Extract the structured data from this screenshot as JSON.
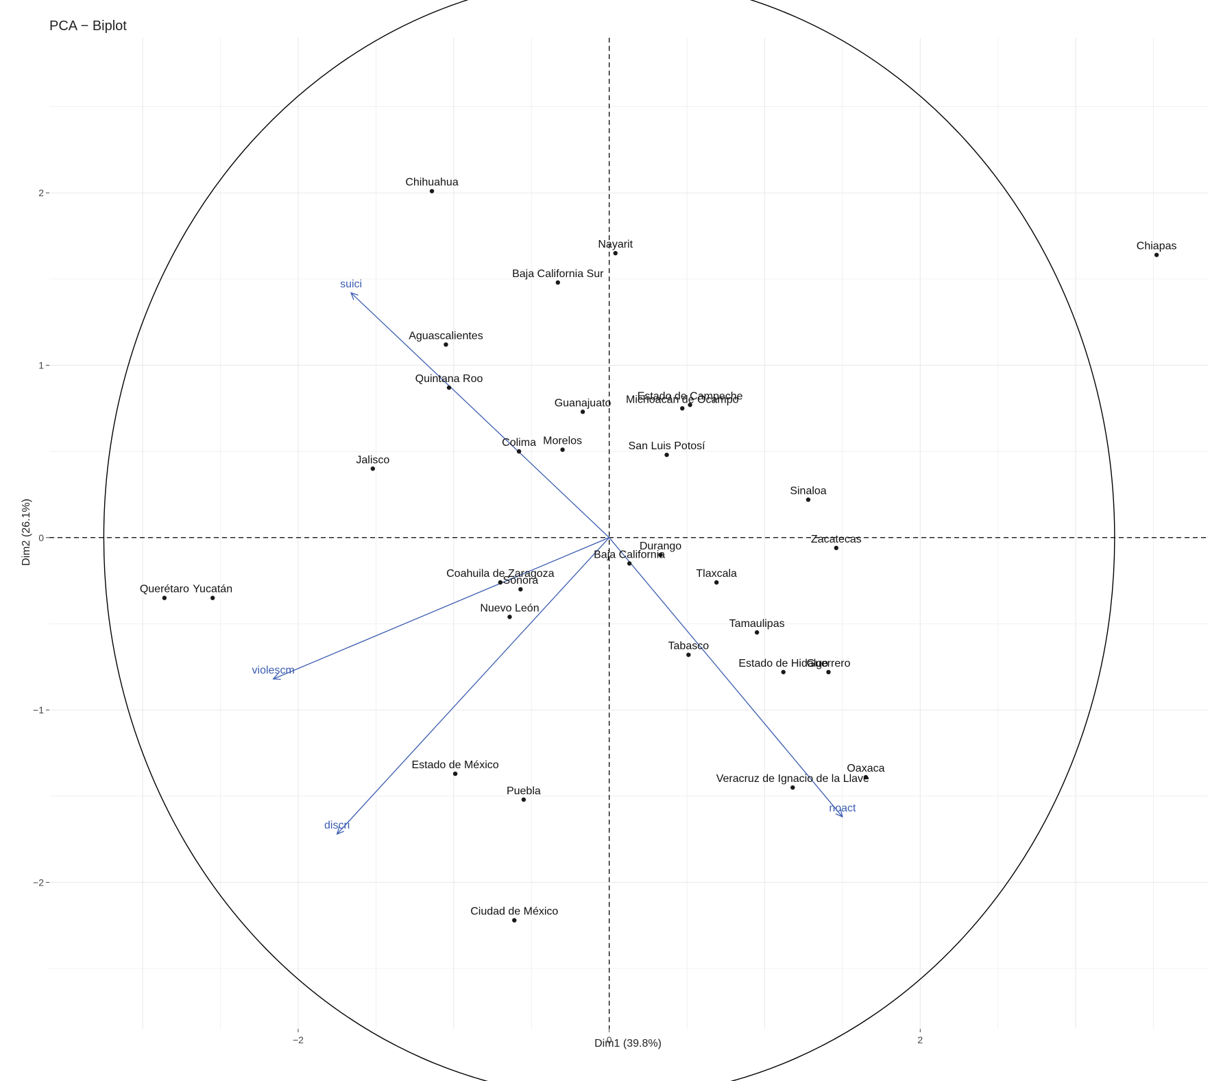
{
  "chart_data": {
    "type": "scatter",
    "title": "PCA − Biplot",
    "xlabel": "Dim1 (39.8%)",
    "ylabel": "Dim2 (26.1%)",
    "xlim": [
      -3.6,
      3.85
    ],
    "ylim": [
      -2.85,
      2.9
    ],
    "xticks": [
      -2,
      0,
      2
    ],
    "yticks": [
      -2,
      -1,
      0,
      1,
      2
    ],
    "grid": true,
    "circle_radius": 3.25,
    "colors": {
      "points": "#1a1a1a",
      "variables": "#3b5cb0",
      "grid": "#ebebeb",
      "circle": "#000000"
    },
    "points": [
      {
        "name": "Chihuahua",
        "x": -1.14,
        "y": 2.01
      },
      {
        "name": "Nayarit",
        "x": 0.04,
        "y": 1.65
      },
      {
        "name": "Baja California Sur",
        "x": -0.33,
        "y": 1.48
      },
      {
        "name": "Chiapas",
        "x": 3.52,
        "y": 1.64
      },
      {
        "name": "Aguascalientes",
        "x": -1.05,
        "y": 1.12
      },
      {
        "name": "Quintana Roo",
        "x": -1.03,
        "y": 0.87
      },
      {
        "name": "Guanajuato",
        "x": -0.17,
        "y": 0.73
      },
      {
        "name": "Estado de Campeche",
        "x": 0.52,
        "y": 0.77
      },
      {
        "name": "Michoacán de Ocampo",
        "x": 0.47,
        "y": 0.75
      },
      {
        "name": "Colima",
        "x": -0.58,
        "y": 0.5
      },
      {
        "name": "Morelos",
        "x": -0.3,
        "y": 0.51
      },
      {
        "name": "San Luis Potosí",
        "x": 0.37,
        "y": 0.48
      },
      {
        "name": "Jalisco",
        "x": -1.52,
        "y": 0.4
      },
      {
        "name": "Sinaloa",
        "x": 1.28,
        "y": 0.22
      },
      {
        "name": "Zacatecas",
        "x": 1.46,
        "y": -0.06
      },
      {
        "name": "Durango",
        "x": 0.33,
        "y": -0.1
      },
      {
        "name": "Baja California",
        "x": 0.13,
        "y": -0.15
      },
      {
        "name": "Coahuila de Zaragoza",
        "x": -0.7,
        "y": -0.26
      },
      {
        "name": "Sonora",
        "x": -0.57,
        "y": -0.3
      },
      {
        "name": "Querétaro",
        "x": -2.86,
        "y": -0.35
      },
      {
        "name": "Yucatán",
        "x": -2.55,
        "y": -0.35
      },
      {
        "name": "Tlaxcala",
        "x": 0.69,
        "y": -0.26
      },
      {
        "name": "Nuevo León",
        "x": -0.64,
        "y": -0.46
      },
      {
        "name": "Tamaulipas",
        "x": 0.95,
        "y": -0.55
      },
      {
        "name": "Tabasco",
        "x": 0.51,
        "y": -0.68
      },
      {
        "name": "Estado de Hidalgo",
        "x": 1.12,
        "y": -0.78
      },
      {
        "name": "Guerrero",
        "x": 1.41,
        "y": -0.78
      },
      {
        "name": "Estado de México",
        "x": -0.99,
        "y": -1.37
      },
      {
        "name": "Puebla",
        "x": -0.55,
        "y": -1.52
      },
      {
        "name": "Oaxaca",
        "x": 1.65,
        "y": -1.39
      },
      {
        "name": "Veracruz de Ignacio de la Llave",
        "x": 1.18,
        "y": -1.45
      },
      {
        "name": "Ciudad de México",
        "x": -0.61,
        "y": -2.22
      }
    ],
    "variables": [
      {
        "name": "suici",
        "x": -1.66,
        "y": 1.42
      },
      {
        "name": "violescm",
        "x": -2.16,
        "y": -0.82
      },
      {
        "name": "discri",
        "x": -1.75,
        "y": -1.72
      },
      {
        "name": "noact",
        "x": 1.5,
        "y": -1.62
      }
    ]
  }
}
